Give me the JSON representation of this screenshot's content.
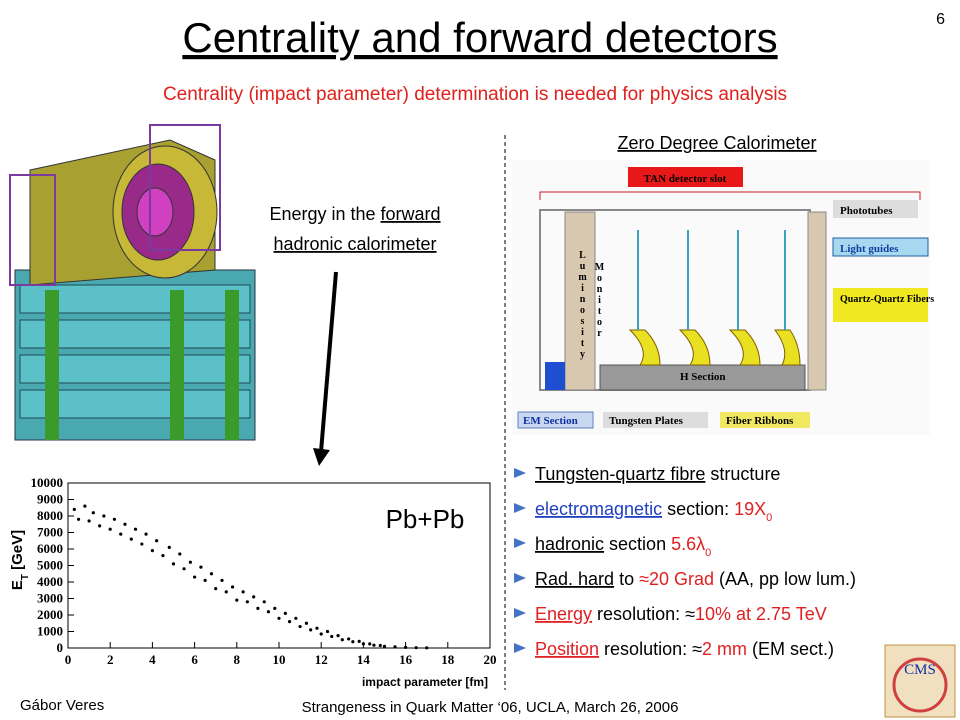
{
  "title": "Centrality and forward detectors",
  "page_number": "6",
  "subtitle": "Centrality (impact parameter) determination is needed for physics analysis",
  "energy_note": {
    "lines": [
      [
        {
          "text": "Energy in the "
        },
        {
          "text": "forward",
          "underline": true
        }
      ],
      [
        {
          "text": " hadronic calorimeter ",
          "underline": true
        }
      ]
    ]
  },
  "zdc_title": "Zero Degree Calorimeter",
  "diagram": {
    "labels": {
      "tan": "TAN detector slot",
      "phototubes": "Phototubes",
      "light_guides": "Light guides",
      "fibers": "Quartz-Quartz Fibers",
      "luminosity": "Luminosity",
      "monitor": "Monitor",
      "h_section": "H Section",
      "em_section": "EM Section",
      "tungsten": "Tungsten Plates",
      "ribbons": "Fiber Ribbons"
    }
  },
  "chart_data": {
    "type": "scatter",
    "annotation": "Pb+Pb",
    "xlabel": "impact parameter [fm]",
    "ylabel": {
      "main": "E",
      "sub": "T",
      "rest": " [GeV]"
    },
    "xlim": [
      0,
      20
    ],
    "ylim": [
      0,
      10000
    ],
    "xticks": [
      0,
      2,
      4,
      6,
      8,
      10,
      12,
      14,
      16,
      18,
      20
    ],
    "yticks": [
      0,
      1000,
      2000,
      3000,
      4000,
      5000,
      6000,
      7000,
      8000,
      9000,
      10000
    ],
    "color": "#000000",
    "x": [
      0.3,
      0.5,
      0.8,
      1.0,
      1.2,
      1.5,
      1.7,
      2.0,
      2.2,
      2.5,
      2.7,
      3.0,
      3.2,
      3.5,
      3.7,
      4.0,
      4.2,
      4.5,
      4.8,
      5.0,
      5.3,
      5.5,
      5.8,
      6.0,
      6.3,
      6.5,
      6.8,
      7.0,
      7.3,
      7.5,
      7.8,
      8.0,
      8.3,
      8.5,
      8.8,
      9.0,
      9.3,
      9.5,
      9.8,
      10.0,
      10.3,
      10.5,
      10.8,
      11.0,
      11.3,
      11.5,
      11.8,
      12.0,
      12.3,
      12.5,
      12.8,
      13.0,
      13.3,
      13.5,
      13.8,
      14.0,
      14.3,
      14.5,
      14.8,
      15.0,
      15.5,
      16.0,
      16.5,
      17.0
    ],
    "values": [
      8400,
      7800,
      8600,
      7700,
      8200,
      7400,
      8000,
      7200,
      7800,
      6900,
      7500,
      6600,
      7200,
      6300,
      6900,
      5900,
      6500,
      5600,
      6100,
      5100,
      5700,
      4800,
      5200,
      4300,
      4900,
      4100,
      4500,
      3600,
      4100,
      3400,
      3700,
      2900,
      3400,
      2800,
      3100,
      2400,
      2800,
      2200,
      2400,
      1800,
      2100,
      1600,
      1800,
      1300,
      1500,
      1100,
      1200,
      850,
      1000,
      700,
      750,
      500,
      550,
      380,
      400,
      250,
      250,
      170,
      150,
      100,
      70,
      40,
      20,
      10
    ]
  },
  "bullets": [
    [
      {
        "text": "Tungsten-quartz fibre",
        "underline": true
      },
      {
        "text": " structure"
      }
    ],
    [
      {
        "text": "electromagnetic",
        "underline": true,
        "color": "#1f3fbf"
      },
      {
        "text": " section: "
      },
      {
        "text": "19X",
        "color": "#e02020"
      },
      {
        "text": "0",
        "color": "#e02020",
        "sub": true
      }
    ],
    [
      {
        "text": "hadronic",
        "underline": true
      },
      {
        "text": " section "
      },
      {
        "text": "5.6λ",
        "color": "#e02020"
      },
      {
        "text": "0",
        "color": "#e02020",
        "sub": true
      }
    ],
    [
      {
        "text": "Rad. hard",
        "underline": true
      },
      {
        "text": " to "
      },
      {
        "text": "≈20 Grad",
        "color": "#e02020"
      },
      {
        "text": " (AA, pp low lum.)"
      }
    ],
    [
      {
        "text": "Energy",
        "underline": true,
        "color": "#e02020"
      },
      {
        "text": " resolution: ≈"
      },
      {
        "text": "10% at 2.75 TeV",
        "color": "#e02020"
      }
    ],
    [
      {
        "text": "Position",
        "underline": true,
        "color": "#e02020"
      },
      {
        "text": " resolution: ≈"
      },
      {
        "text": "2 mm",
        "color": "#e02020"
      },
      {
        "text": " (EM sect.)"
      }
    ]
  ],
  "footer": {
    "author": "Gábor Veres",
    "event": "Strangeness in Quark Matter ‘06, UCLA, March 26, 2006",
    "logo": "CMS"
  }
}
